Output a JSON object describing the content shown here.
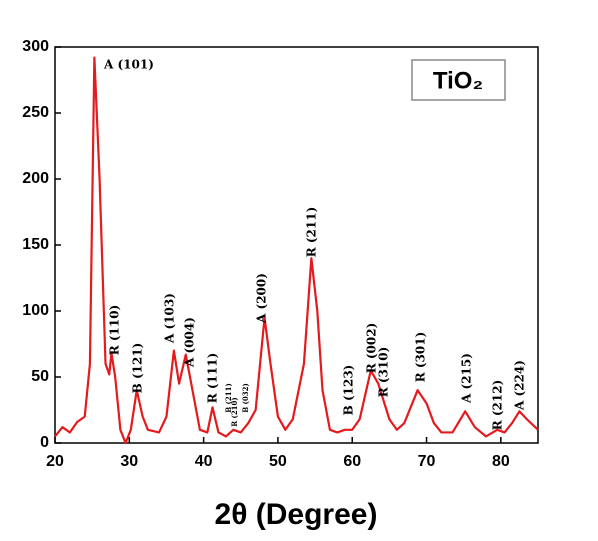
{
  "chart_data": {
    "type": "line",
    "title": "TiO₂",
    "x_label": "2θ (Degree)",
    "x": [
      20,
      21,
      22,
      23,
      24,
      24.7,
      25.3,
      26,
      26.8,
      27.3,
      27.6,
      28.1,
      28.8,
      29.5,
      30.2,
      31,
      31.8,
      32.5,
      34,
      35,
      36,
      36.7,
      37.6,
      38.5,
      39.5,
      40.5,
      41.2,
      42,
      43,
      44,
      45,
      46,
      47,
      48.2,
      49,
      50,
      51,
      52,
      53.5,
      54.5,
      55.3,
      56,
      57,
      58,
      59,
      60,
      61,
      62.5,
      63.5,
      65,
      66,
      67,
      68.8,
      70,
      71,
      72,
      73.5,
      75.2,
      76.5,
      78,
      79.5,
      80.5,
      81.5,
      82.5,
      83.5,
      85
    ],
    "series": [
      {
        "name": "TiO₂",
        "color": "#e41a1c",
        "values": [
          5,
          12,
          8,
          16,
          20,
          60,
          292,
          200,
          60,
          52,
          68,
          50,
          10,
          0,
          10,
          40,
          20,
          10,
          8,
          20,
          70,
          45,
          67,
          40,
          10,
          8,
          27,
          8,
          5,
          10,
          8,
          15,
          25,
          95,
          60,
          20,
          10,
          18,
          60,
          140,
          100,
          40,
          10,
          8,
          10,
          10,
          18,
          55,
          45,
          18,
          10,
          15,
          40,
          30,
          15,
          8,
          8,
          24,
          12,
          5,
          10,
          8,
          15,
          24,
          18,
          10
        ]
      }
    ],
    "annotations": [
      "A (101)",
      "R (110)",
      "B (121)",
      "A (103)",
      "A (004)",
      "R (111)",
      "B (211)",
      "R (210)",
      "B (032)",
      "A (200)",
      "R (211)",
      "B (123)",
      "R (002)",
      "R (310)",
      "R (301)",
      "A (215)",
      "R (212)",
      "A (224)"
    ],
    "xlim": [
      20,
      85
    ],
    "ylim": [
      0,
      300
    ],
    "xticks": [
      20,
      30,
      40,
      50,
      60,
      70,
      80
    ],
    "yticks": [
      0,
      50,
      100,
      150,
      200,
      250,
      300
    ]
  }
}
